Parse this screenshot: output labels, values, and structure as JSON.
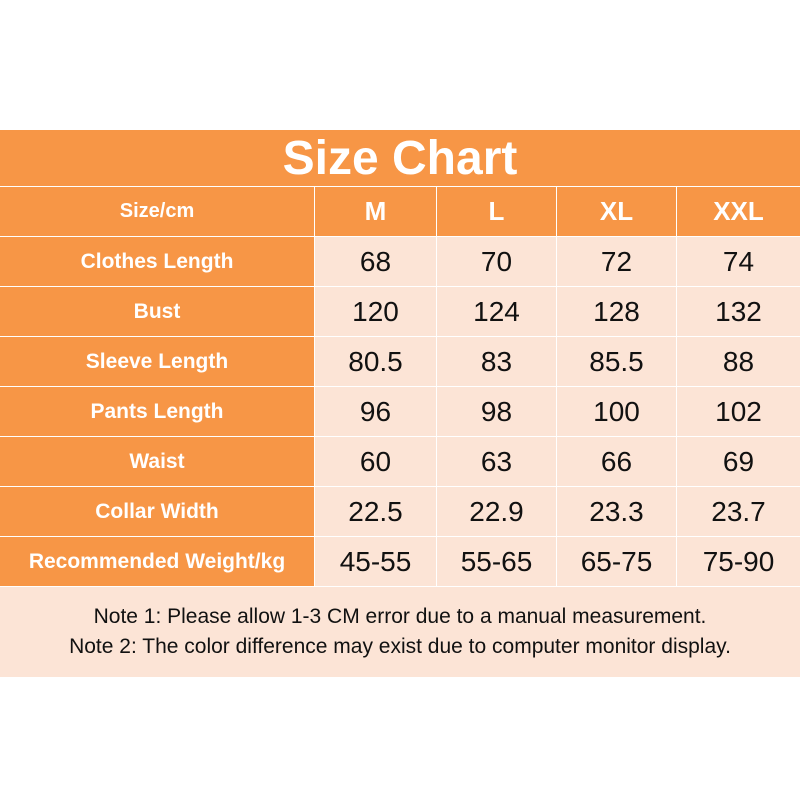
{
  "table": {
    "title": "Size Chart",
    "header": [
      "Size/cm",
      "M",
      "L",
      "XL",
      "XXL"
    ],
    "rows": [
      [
        "Clothes Length",
        "68",
        "70",
        "72",
        "74"
      ],
      [
        "Bust",
        "120",
        "124",
        "128",
        "132"
      ],
      [
        "Sleeve Length",
        "80.5",
        "83",
        "85.5",
        "88"
      ],
      [
        "Pants Length",
        "96",
        "98",
        "100",
        "102"
      ],
      [
        "Waist",
        "60",
        "63",
        "66",
        "69"
      ],
      [
        "Collar Width",
        "22.5",
        "22.9",
        "23.3",
        "23.7"
      ],
      [
        "Recommended Weight/kg",
        "45-55",
        "55-65",
        "65-75",
        "75-90"
      ]
    ],
    "notes": [
      "Note 1: Please allow 1-3 CM error due to a manual measurement.",
      "Note 2: The color difference may exist due to computer monitor display."
    ]
  }
}
